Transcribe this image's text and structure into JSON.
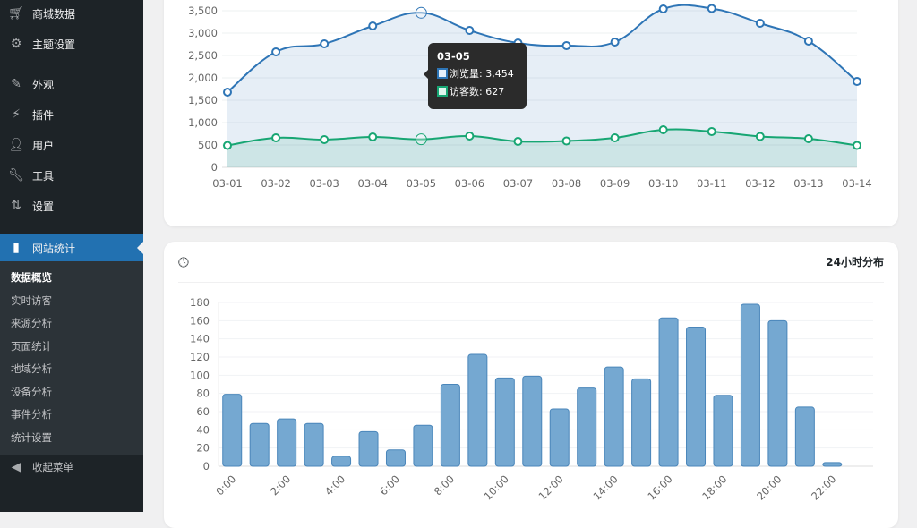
{
  "sidebar": {
    "items": [
      {
        "label": "商城数据",
        "icon": "cart-icon"
      },
      {
        "label": "主题设置",
        "icon": "gear-icon"
      },
      {
        "label": "外观",
        "icon": "paintbrush-icon"
      },
      {
        "label": "插件",
        "icon": "plugin-icon"
      },
      {
        "label": "用户",
        "icon": "user-icon"
      },
      {
        "label": "工具",
        "icon": "wrench-icon"
      },
      {
        "label": "设置",
        "icon": "settings-icon"
      },
      {
        "label": "网站统计",
        "icon": "bar-chart-icon",
        "active": true
      }
    ],
    "submenu": [
      "数据概览",
      "实时访客",
      "来源分析",
      "页面统计",
      "地域分析",
      "设备分析",
      "事件分析",
      "统计设置"
    ],
    "collapse_label": "收起菜单",
    "accent": "#2271b1"
  },
  "tooltip": {
    "title": "03-05",
    "rows": [
      {
        "label": "浏览量: 3,454",
        "color": "#2e75b6"
      },
      {
        "label": "访客数: 627",
        "color": "#17a673"
      }
    ]
  },
  "card2": {
    "title": "24小时分布",
    "icon": "clock-icon"
  },
  "chart_data": [
    {
      "type": "area",
      "categories": [
        "03-01",
        "03-02",
        "03-03",
        "03-04",
        "03-05",
        "03-06",
        "03-07",
        "03-08",
        "03-09",
        "03-10",
        "03-11",
        "03-12",
        "03-13",
        "03-14"
      ],
      "series": [
        {
          "name": "浏览量",
          "color": "#2e75b6",
          "values": [
            1680,
            2580,
            2760,
            3160,
            3454,
            3060,
            2780,
            2720,
            2800,
            3540,
            3550,
            3220,
            2820,
            1920
          ]
        },
        {
          "name": "访客数",
          "color": "#17a673",
          "values": [
            490,
            660,
            620,
            680,
            627,
            700,
            580,
            590,
            660,
            840,
            800,
            690,
            640,
            490
          ]
        }
      ],
      "yticks": [
        "0",
        "500",
        "1,000",
        "1,500",
        "2,000",
        "2,500",
        "3,000",
        "3,500"
      ],
      "ylim": [
        0,
        3500
      ],
      "grid": true
    },
    {
      "type": "bar",
      "title": "24小时分布",
      "categories": [
        "0:00",
        "1:00",
        "2:00",
        "3:00",
        "4:00",
        "5:00",
        "6:00",
        "7:00",
        "8:00",
        "9:00",
        "10:00",
        "11:00",
        "12:00",
        "13:00",
        "14:00",
        "15:00",
        "16:00",
        "17:00",
        "18:00",
        "19:00",
        "20:00",
        "21:00",
        "22:00",
        "23:00"
      ],
      "values": [
        79,
        47,
        52,
        47,
        11,
        38,
        18,
        45,
        90,
        123,
        97,
        99,
        63,
        86,
        109,
        96,
        163,
        153,
        78,
        178,
        160,
        65,
        4,
        0
      ],
      "yticks": [
        "0",
        "20",
        "40",
        "60",
        "80",
        "100",
        "120",
        "140",
        "160",
        "180"
      ],
      "ylim": [
        0,
        180
      ],
      "color": "#75a8d1",
      "grid": true
    }
  ]
}
